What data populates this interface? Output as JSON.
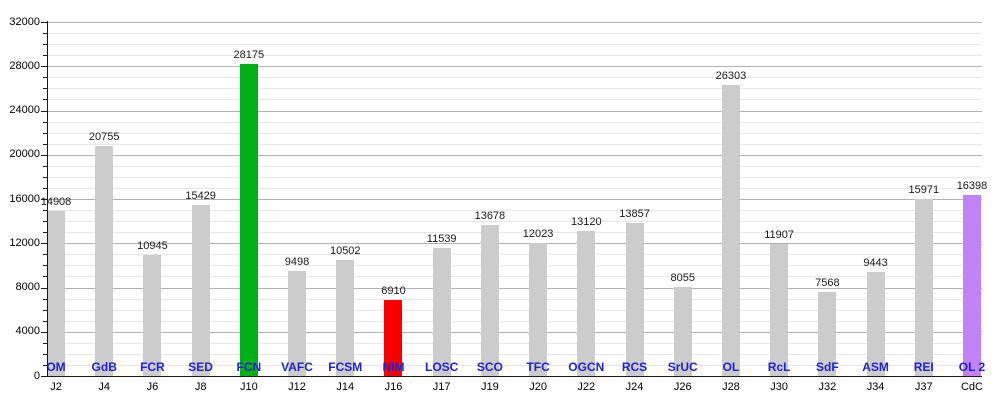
{
  "chart_data": {
    "type": "bar",
    "title": "",
    "xlabel": "",
    "ylabel": "",
    "categories": [
      "J2",
      "J4",
      "J6",
      "J8",
      "J10",
      "J12",
      "J14",
      "J16",
      "J17",
      "J19",
      "J20",
      "J22",
      "J24",
      "J26",
      "J28",
      "J30",
      "J32",
      "J34",
      "J37",
      "CdC"
    ],
    "bar_labels": [
      "OM",
      "GdB",
      "FCR",
      "SED",
      "FCN",
      "VAFC",
      "FCSM",
      "NIM",
      "LOSC",
      "SCO",
      "TFC",
      "OGCN",
      "RCS",
      "SrUC",
      "OL",
      "RcL",
      "SdF",
      "ASM",
      "REI",
      "OL 2"
    ],
    "values": [
      14908,
      20755,
      10945,
      15429,
      28175,
      9498,
      10502,
      6910,
      11539,
      13678,
      12023,
      13120,
      13857,
      8055,
      26303,
      11907,
      7568,
      9443,
      15971,
      16398
    ],
    "bar_colors": [
      "#cccccc",
      "#cccccc",
      "#cccccc",
      "#cccccc",
      "#00b014",
      "#cccccc",
      "#cccccc",
      "#f80000",
      "#cccccc",
      "#cccccc",
      "#cccccc",
      "#cccccc",
      "#cccccc",
      "#cccccc",
      "#cccccc",
      "#cccccc",
      "#cccccc",
      "#cccccc",
      "#cccccc",
      "#c183f7"
    ],
    "value_labels_shown": true,
    "ylim": [
      0,
      32000
    ],
    "y_major_step": 4000,
    "y_minor_step": 1000,
    "y_tick_labels": [
      "0",
      "4000",
      "8000",
      "12000",
      "16000",
      "20000",
      "24000",
      "28000",
      "32000"
    ],
    "grid": true,
    "legend_position": "none",
    "colors": {
      "default_bar": "#cccccc",
      "green_bar": "#00b014",
      "red_bar": "#f80000",
      "purple_bar": "#c183f7",
      "team_label": "#2222cc",
      "value_label": "#1a1a1a",
      "axis": "#1a1a1a",
      "tick_label": "#000000",
      "grid_major": "#b2b2b2",
      "grid_minor": "#e7e7e7",
      "background": "#ffffff"
    }
  }
}
